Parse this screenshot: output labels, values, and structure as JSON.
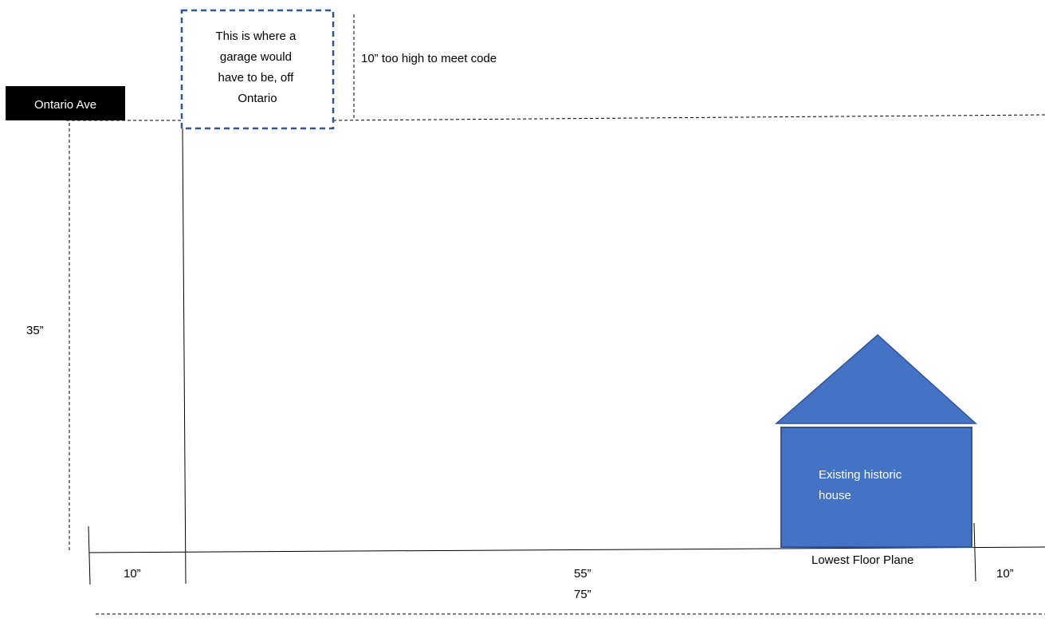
{
  "street": {
    "label": "Ontario Ave",
    "label_bg": "#000000",
    "label_color": "#ffffff"
  },
  "garage_box": {
    "lines": [
      "This is where a",
      "garage would",
      "have to be, off",
      "Ontario"
    ],
    "border_color": "#2f5597"
  },
  "annotations": {
    "too_high": "10” too high to meet code",
    "height_35": "35”",
    "left_setback": "10”",
    "middle_span": "55”",
    "total_span": "75”",
    "right_setback": "10”",
    "floor_plane": "Lowest Floor Plane"
  },
  "house": {
    "lines": [
      "Existing historic",
      "house"
    ],
    "fill": "#4472c4",
    "stroke": "#2f5597",
    "text_color": "#ffffff"
  }
}
